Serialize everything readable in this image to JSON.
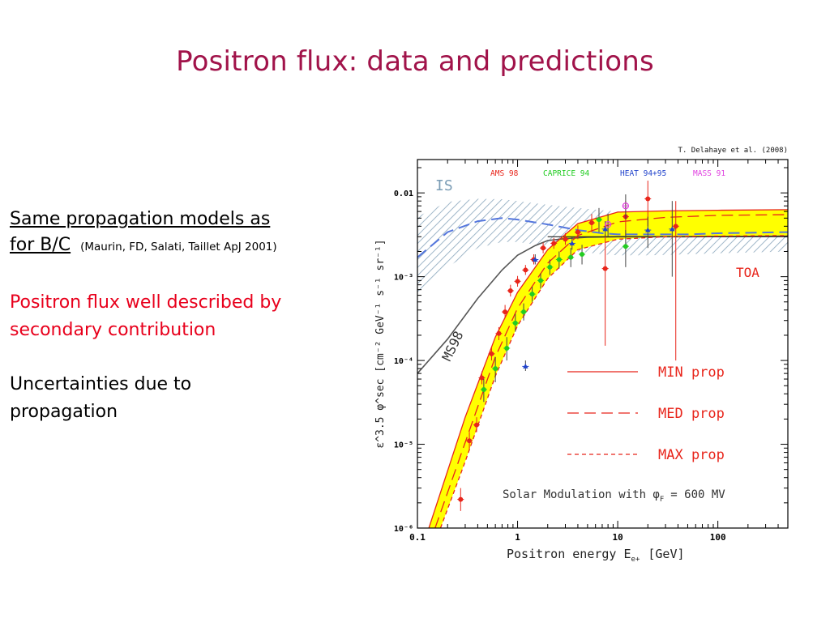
{
  "slide": {
    "title": "Positron flux: data and predictions",
    "heading_line1": "Same propagation models as",
    "heading_line2": "for B/C",
    "citation": "(Maurin, FD, Salati, Taillet ApJ 2001)",
    "point1": "Positron flux well described by secondary contribution",
    "point2": "Uncertainties due to propagation"
  },
  "chart_data": {
    "type": "scatter",
    "credit": "T. Delahaye et al. (2008)",
    "xlabel": "Positron energy E",
    "xlabel_sub": "e+",
    "xlabel_unit": "[GeV]",
    "ylabel": "ε^3.5 φ^sec [cm⁻² GeV⁻¹ s⁻¹ sr⁻¹]",
    "x_scale": "log",
    "y_scale": "log",
    "xlim": [
      0.1,
      500
    ],
    "ylim": [
      1e-06,
      0.025
    ],
    "x_ticks": [
      0.1,
      1,
      10,
      100
    ],
    "x_tick_labels": [
      "0.1",
      "1",
      "10",
      "100"
    ],
    "y_ticks": [
      1e-06,
      1e-05,
      0.0001,
      0.001,
      0.01
    ],
    "y_tick_labels": [
      "10⁻⁶",
      "10⁻⁵",
      "10⁻⁴",
      "10⁻³",
      "0.01"
    ],
    "annotations": {
      "is": "IS",
      "toa": "TOA",
      "ms98": "MS98",
      "solar": "Solar Modulation with φ",
      "solar_sub": "F",
      "solar_value": "= 600 MV"
    },
    "experiments": [
      {
        "name": "AMS 98",
        "color": "#e8251b"
      },
      {
        "name": "CAPRICE 94",
        "color": "#22cc22"
      },
      {
        "name": "HEAT 94+95",
        "color": "#2244cc"
      },
      {
        "name": "MASS 91",
        "color": "#e040e0"
      }
    ],
    "model_legend": [
      {
        "label": "MIN prop",
        "dash": "none"
      },
      {
        "label": "MED prop",
        "dash": "14,7"
      },
      {
        "label": "MAX prop",
        "dash": "5,4"
      }
    ],
    "colors": {
      "band": "#ffff00",
      "model_lines": "#e8251b",
      "is_hatch": "#9fb6c8",
      "is_curve": "#5577dd",
      "ms98": "#555555",
      "flat": "#222222"
    },
    "series": [
      {
        "name": "MIN prop",
        "x": [
          0.13,
          0.3,
          0.6,
          1,
          2,
          4,
          10,
          30,
          100,
          500
        ],
        "y": [
          1e-06,
          2.1e-05,
          0.00019,
          0.00065,
          0.0021,
          0.0043,
          0.0059,
          0.0061,
          0.0062,
          0.0063
        ]
      },
      {
        "name": "MED prop",
        "x": [
          0.15,
          0.3,
          0.6,
          1,
          2,
          4,
          10,
          30,
          100,
          500
        ],
        "y": [
          1e-06,
          1.05e-05,
          0.00011,
          0.00042,
          0.00145,
          0.0031,
          0.0045,
          0.0051,
          0.0054,
          0.0055
        ]
      },
      {
        "name": "MAX prop",
        "x": [
          0.17,
          0.3,
          0.6,
          1,
          2,
          4,
          10,
          30,
          100,
          500
        ],
        "y": [
          1e-06,
          6.2e-06,
          6.5e-05,
          0.00026,
          0.00095,
          0.0021,
          0.0028,
          0.003,
          0.00305,
          0.0031
        ]
      },
      {
        "name": "IS",
        "x": [
          0.1,
          0.2,
          0.4,
          0.7,
          1,
          2,
          4,
          7,
          10,
          20,
          50,
          100,
          500
        ],
        "y": [
          0.0017,
          0.0034,
          0.0046,
          0.005,
          0.0048,
          0.0042,
          0.0036,
          0.0033,
          0.0032,
          0.0032,
          0.0032,
          0.0033,
          0.0034
        ]
      },
      {
        "name": "MS98",
        "x": [
          0.1,
          0.2,
          0.4,
          0.7,
          1,
          1.5,
          2,
          3,
          5,
          10,
          50,
          500
        ],
        "y": [
          7e-05,
          0.00018,
          0.00055,
          0.0012,
          0.0018,
          0.00235,
          0.0027,
          0.00285,
          0.00295,
          0.003,
          0.003,
          0.00305
        ]
      },
      {
        "name": "Flat",
        "x": [
          2,
          500
        ],
        "y": [
          0.003,
          0.003
        ]
      }
    ],
    "is_band_upper": {
      "x": [
        0.1,
        0.2,
        0.4,
        0.7,
        1,
        2,
        4,
        7,
        10,
        20,
        50,
        100,
        500
      ],
      "y": [
        0.0052,
        0.0078,
        0.0085,
        0.0084,
        0.008,
        0.0072,
        0.0066,
        0.0062,
        0.006,
        0.0059,
        0.0059,
        0.006,
        0.0061
      ]
    },
    "is_band_lower": {
      "x": [
        0.1,
        0.2,
        0.4,
        0.7,
        1,
        2,
        4,
        7,
        10,
        20,
        50,
        100,
        500
      ],
      "y": [
        0.0006,
        0.0013,
        0.0022,
        0.0026,
        0.0026,
        0.0023,
        0.002,
        0.00185,
        0.0018,
        0.0018,
        0.00185,
        0.0019,
        0.002
      ]
    },
    "points": [
      {
        "exp": "AMS 98",
        "x": 0.27,
        "y": 2.2e-06,
        "lo": 1.6e-06,
        "hi": 3e-06
      },
      {
        "exp": "AMS 98",
        "x": 0.33,
        "y": 1.1e-05,
        "lo": 8.5e-06,
        "hi": 1.4e-05
      },
      {
        "exp": "AMS 98",
        "x": 0.39,
        "y": 1.7e-05,
        "lo": 1.4e-05,
        "hi": 2.1e-05
      },
      {
        "exp": "AMS 98",
        "x": 0.44,
        "y": 6.2e-05,
        "lo": 5.2e-05,
        "hi": 7.4e-05
      },
      {
        "exp": "AMS 98",
        "x": 0.55,
        "y": 0.00012,
        "lo": 0.0001,
        "hi": 0.000145
      },
      {
        "exp": "AMS 98",
        "x": 0.65,
        "y": 0.00021,
        "lo": 0.000175,
        "hi": 0.00025
      },
      {
        "exp": "AMS 98",
        "x": 0.75,
        "y": 0.00038,
        "lo": 0.00032,
        "hi": 0.00046
      },
      {
        "exp": "AMS 98",
        "x": 0.85,
        "y": 0.00068,
        "lo": 0.00058,
        "hi": 0.0008
      },
      {
        "exp": "AMS 98",
        "x": 1.0,
        "y": 0.00088,
        "lo": 0.00076,
        "hi": 0.00102
      },
      {
        "exp": "AMS 98",
        "x": 1.2,
        "y": 0.0012,
        "lo": 0.00105,
        "hi": 0.00138
      },
      {
        "exp": "AMS 98",
        "x": 1.45,
        "y": 0.0016,
        "lo": 0.0014,
        "hi": 0.00185
      },
      {
        "exp": "AMS 98",
        "x": 1.8,
        "y": 0.0022,
        "lo": 0.0019,
        "hi": 0.00255
      },
      {
        "exp": "AMS 98",
        "x": 2.3,
        "y": 0.0025,
        "lo": 0.00215,
        "hi": 0.0029
      },
      {
        "exp": "AMS 98",
        "x": 3.0,
        "y": 0.0028,
        "lo": 0.0024,
        "hi": 0.0033
      },
      {
        "exp": "AMS 98",
        "x": 4.0,
        "y": 0.0034,
        "lo": 0.0028,
        "hi": 0.0041
      },
      {
        "exp": "AMS 98",
        "x": 5.5,
        "y": 0.0044,
        "lo": 0.0034,
        "hi": 0.0056
      },
      {
        "exp": "AMS 98",
        "x": 7.5,
        "y": 0.00125,
        "lo": 0.00015,
        "hi": 0.0032
      },
      {
        "exp": "AMS 98",
        "x": 12,
        "y": 0.0052,
        "lo": 0.003,
        "hi": 0.008
      },
      {
        "exp": "AMS 98",
        "x": 20,
        "y": 0.0085,
        "lo": 0.004,
        "hi": 0.014
      },
      {
        "exp": "AMS 98",
        "x": 38,
        "y": 0.004,
        "lo": 0.0001,
        "hi": 0.008
      },
      {
        "exp": "CAPRICE 94",
        "x": 0.46,
        "y": 4.5e-05,
        "lo": 3.2e-05,
        "hi": 6e-05
      },
      {
        "exp": "CAPRICE 94",
        "x": 0.6,
        "y": 8e-05,
        "lo": 5.5e-05,
        "hi": 0.00011
      },
      {
        "exp": "CAPRICE 94",
        "x": 0.78,
        "y": 0.00014,
        "lo": 0.0001,
        "hi": 0.00019
      },
      {
        "exp": "CAPRICE 94",
        "x": 0.95,
        "y": 0.00028,
        "lo": 0.00022,
        "hi": 0.00036
      },
      {
        "exp": "CAPRICE 94",
        "x": 1.15,
        "y": 0.00038,
        "lo": 0.0003,
        "hi": 0.00048
      },
      {
        "exp": "CAPRICE 94",
        "x": 1.4,
        "y": 0.00062,
        "lo": 0.0005,
        "hi": 0.00076
      },
      {
        "exp": "CAPRICE 94",
        "x": 1.7,
        "y": 0.0009,
        "lo": 0.00072,
        "hi": 0.0011
      },
      {
        "exp": "CAPRICE 94",
        "x": 2.1,
        "y": 0.0013,
        "lo": 0.00105,
        "hi": 0.0016
      },
      {
        "exp": "CAPRICE 94",
        "x": 2.6,
        "y": 0.0016,
        "lo": 0.00125,
        "hi": 0.002
      },
      {
        "exp": "CAPRICE 94",
        "x": 3.4,
        "y": 0.0017,
        "lo": 0.0013,
        "hi": 0.0022
      },
      {
        "exp": "CAPRICE 94",
        "x": 4.4,
        "y": 0.00185,
        "lo": 0.0014,
        "hi": 0.0024
      },
      {
        "exp": "CAPRICE 94",
        "x": 6.5,
        "y": 0.0048,
        "lo": 0.0034,
        "hi": 0.0066
      },
      {
        "exp": "CAPRICE 94",
        "x": 12,
        "y": 0.0023,
        "lo": 0.0013,
        "hi": 0.0036
      },
      {
        "exp": "HEAT 94+95",
        "x": 1.2,
        "y": 8.5e-05,
        "lo": 7.5e-05,
        "hi": 0.0001
      },
      {
        "exp": "HEAT 94+95",
        "x": 1.5,
        "y": 0.0016,
        "lo": 0.0014,
        "hi": 0.00185
      },
      {
        "exp": "HEAT 94+95",
        "x": 3.5,
        "y": 0.0025,
        "lo": 0.0021,
        "hi": 0.003
      },
      {
        "exp": "HEAT 94+95",
        "x": 7.5,
        "y": 0.0037,
        "lo": 0.003,
        "hi": 0.0046
      },
      {
        "exp": "HEAT 94+95",
        "x": 20,
        "y": 0.0036,
        "lo": 0.0022,
        "hi": 0.0052
      },
      {
        "exp": "HEAT 94+95",
        "x": 35,
        "y": 0.0037,
        "lo": 0.001,
        "hi": 0.008
      },
      {
        "exp": "MASS 91",
        "x": 8,
        "y": 0.0042,
        "lo": 0.003,
        "hi": 0.0056
      },
      {
        "exp": "MASS 91",
        "x": 12,
        "y": 0.007,
        "lo": 0.0048,
        "hi": 0.0096
      }
    ]
  }
}
